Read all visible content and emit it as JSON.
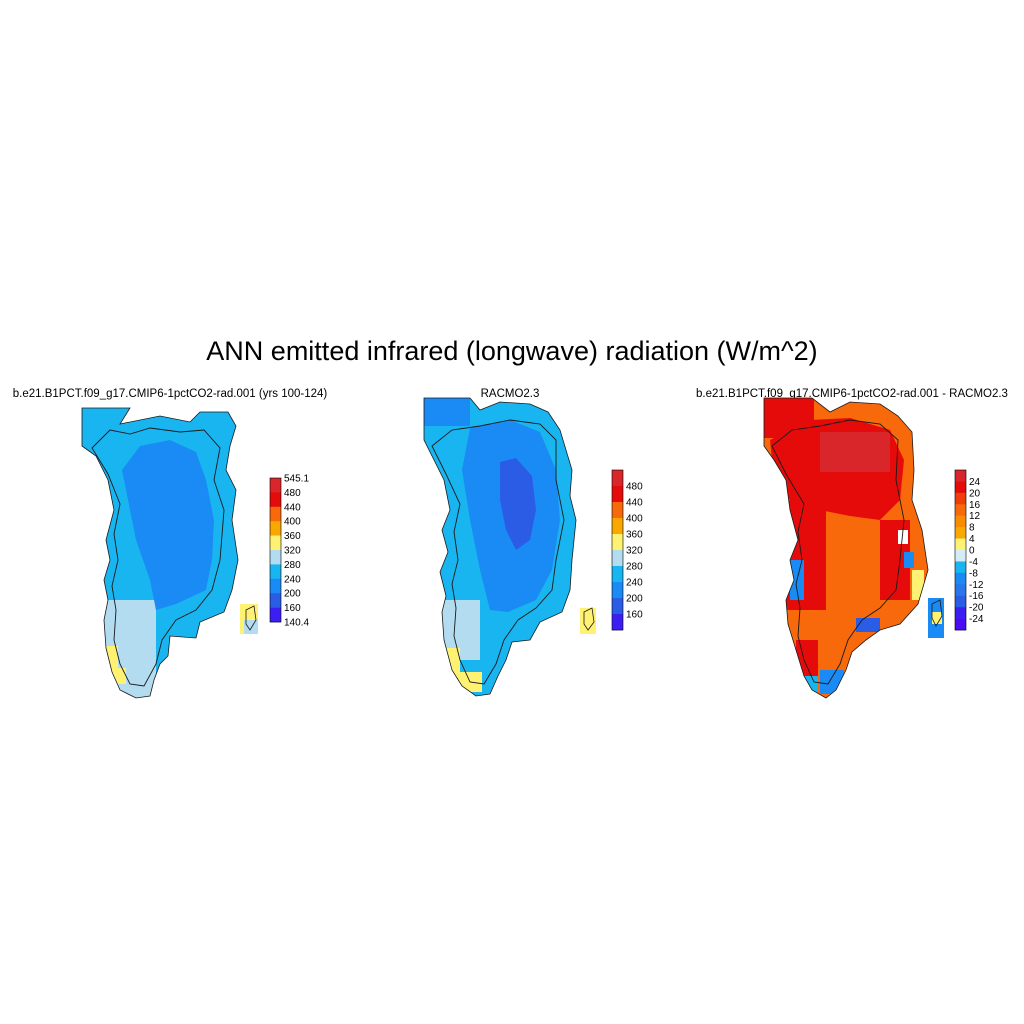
{
  "title": "ANN emitted infrared (longwave) radiation (W/m^2)",
  "panels": [
    {
      "title": "b.e21.B1PCT.f09_g17.CMIP6-1pctCO2-rad.001 (yrs 100-124)",
      "colorbar_labels": [
        "545.1",
        "480",
        "440",
        "400",
        "360",
        "320",
        "280",
        "240",
        "200",
        "160",
        "140.4"
      ],
      "colors": [
        "#d8262b",
        "#e60b0b",
        "#f7690b",
        "#f9a800",
        "#fff273",
        "#b3dcf0",
        "#19b5f0",
        "#1a8bf5",
        "#2b5ce6",
        "#3b1ff2"
      ],
      "map_zones": [
        "#19b5f0",
        "#1a8bf5"
      ]
    },
    {
      "title": "RACMO2.3",
      "colorbar_labels": [
        "480",
        "440",
        "400",
        "360",
        "320",
        "280",
        "240",
        "200",
        "160"
      ],
      "colors": [
        "#d8262b",
        "#e60b0b",
        "#f7690b",
        "#f9a800",
        "#fff273",
        "#b3dcf0",
        "#19b5f0",
        "#1a8bf5",
        "#2b5ce6",
        "#3b1ff2"
      ],
      "map_zones": [
        "#19b5f0",
        "#1a8bf5",
        "#2b5ce6"
      ]
    },
    {
      "title": "b.e21.B1PCT.f09_g17.CMIP6-1pctCO2-rad.001 - RACMO2.3",
      "colorbar_labels": [
        "24",
        "20",
        "16",
        "12",
        "8",
        "4",
        "0",
        "-4",
        "-8",
        "-12",
        "-16",
        "-20",
        "-24"
      ],
      "colors": [
        "#d8262b",
        "#e60b0b",
        "#f03e0b",
        "#f7690b",
        "#fa8c00",
        "#f9a800",
        "#fff273",
        "#d4ecf7",
        "#19b5f0",
        "#1a8bf5",
        "#2b75ea",
        "#2b5ce6",
        "#3b1ff2",
        "#4a0cf5"
      ],
      "map_zones": [
        "#f7690b",
        "#e60b0b",
        "#d8262b"
      ]
    }
  ]
}
